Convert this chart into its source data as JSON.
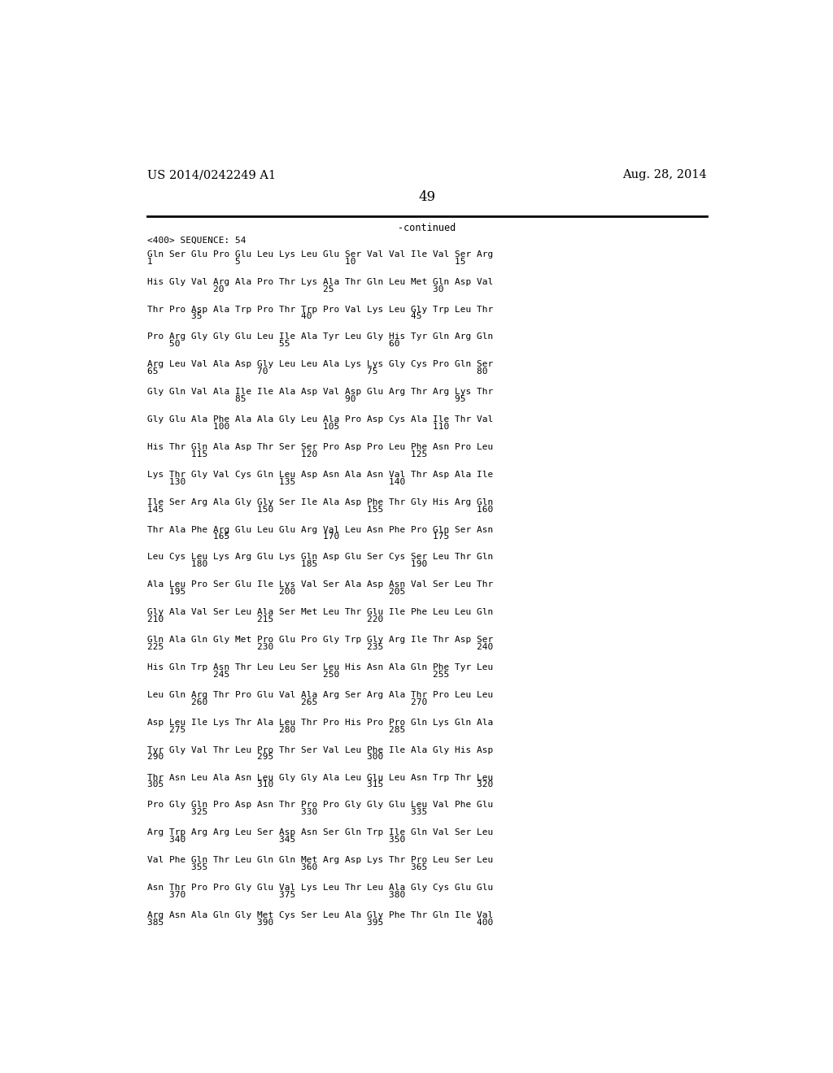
{
  "header_left": "US 2014/0242249 A1",
  "header_right": "Aug. 28, 2014",
  "page_number": "49",
  "continued_text": "-continued",
  "sequence_tag": "<400> SEQUENCE: 54",
  "sequence_blocks": [
    [
      "Gln Ser Glu Pro Glu Leu Lys Leu Glu Ser Val Val Ile Val Ser Arg",
      "1               5                   10                  15"
    ],
    [
      "His Gly Val Arg Ala Pro Thr Lys Ala Thr Gln Leu Met Gln Asp Val",
      "            20                  25                  30"
    ],
    [
      "Thr Pro Asp Ala Trp Pro Thr Trp Pro Val Lys Leu Gly Trp Leu Thr",
      "        35                  40                  45"
    ],
    [
      "Pro Arg Gly Gly Glu Leu Ile Ala Tyr Leu Gly His Tyr Gln Arg Gln",
      "    50                  55                  60"
    ],
    [
      "Arg Leu Val Ala Asp Gly Leu Leu Ala Lys Lys Gly Cys Pro Gln Ser",
      "65                  70                  75                  80"
    ],
    [
      "Gly Gln Val Ala Ile Ile Ala Asp Val Asp Glu Arg Thr Arg Lys Thr",
      "                85                  90                  95"
    ],
    [
      "Gly Glu Ala Phe Ala Ala Gly Leu Ala Pro Asp Cys Ala Ile Thr Val",
      "            100                 105                 110"
    ],
    [
      "His Thr Gln Ala Asp Thr Ser Ser Pro Asp Pro Leu Phe Asn Pro Leu",
      "        115                 120                 125"
    ],
    [
      "Lys Thr Gly Val Cys Gln Leu Asp Asn Ala Asn Val Thr Asp Ala Ile",
      "    130                 135                 140"
    ],
    [
      "Ile Ser Arg Ala Gly Gly Ser Ile Ala Asp Phe Thr Gly His Arg Gln",
      "145                 150                 155                 160"
    ],
    [
      "Thr Ala Phe Arg Glu Leu Glu Arg Val Leu Asn Phe Pro Gln Ser Asn",
      "            165                 170                 175"
    ],
    [
      "Leu Cys Leu Lys Arg Glu Lys Gln Asp Glu Ser Cys Ser Leu Thr Gln",
      "        180                 185                 190"
    ],
    [
      "Ala Leu Pro Ser Glu Ile Lys Val Ser Ala Asp Asn Val Ser Leu Thr",
      "    195                 200                 205"
    ],
    [
      "Gly Ala Val Ser Leu Ala Ser Met Leu Thr Glu Ile Phe Leu Leu Gln",
      "210                 215                 220"
    ],
    [
      "Gln Ala Gln Gly Met Pro Glu Pro Gly Trp Gly Arg Ile Thr Asp Ser",
      "225                 230                 235                 240"
    ],
    [
      "His Gln Trp Asn Thr Leu Leu Ser Leu His Asn Ala Gln Phe Tyr Leu",
      "            245                 250                 255"
    ],
    [
      "Leu Gln Arg Thr Pro Glu Val Ala Arg Ser Arg Ala Thr Pro Leu Leu",
      "        260                 265                 270"
    ],
    [
      "Asp Leu Ile Lys Thr Ala Leu Thr Pro His Pro Pro Gln Lys Gln Ala",
      "    275                 280                 285"
    ],
    [
      "Tyr Gly Val Thr Leu Pro Thr Ser Val Leu Phe Ile Ala Gly His Asp",
      "290                 295                 300"
    ],
    [
      "Thr Asn Leu Ala Asn Leu Gly Gly Ala Leu Glu Leu Asn Trp Thr Leu",
      "305                 310                 315                 320"
    ],
    [
      "Pro Gly Gln Pro Asp Asn Thr Pro Pro Gly Gly Glu Leu Val Phe Glu",
      "        325                 330                 335"
    ],
    [
      "Arg Trp Arg Arg Leu Ser Asp Asn Ser Gln Trp Ile Gln Val Ser Leu",
      "    340                 345                 350"
    ],
    [
      "Val Phe Gln Thr Leu Gln Gln Met Arg Asp Lys Thr Pro Leu Ser Leu",
      "        355                 360                 365"
    ],
    [
      "Asn Thr Pro Pro Gly Glu Val Lys Leu Thr Leu Ala Gly Cys Glu Glu",
      "    370                 375                 380"
    ],
    [
      "Arg Asn Ala Gln Gly Met Cys Ser Leu Ala Gly Phe Thr Gln Ile Val",
      "385                 390                 395                 400"
    ]
  ],
  "bg_color": "#ffffff",
  "text_color": "#000000",
  "font_size": 8.0,
  "header_font_size": 10.5,
  "page_num_font_size": 12,
  "mono_font": "DejaVu Sans Mono"
}
